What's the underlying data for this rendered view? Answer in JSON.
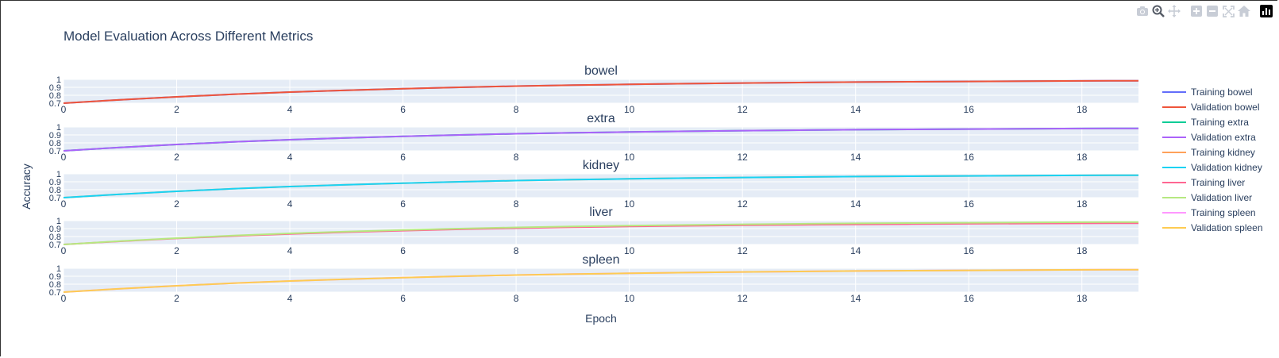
{
  "title": "Model Evaluation Across Different Metrics",
  "modebar": [
    "camera-icon",
    "zoom-icon",
    "pan-icon",
    "zoom-in-icon",
    "zoom-out-icon",
    "autoscale-icon",
    "reset-axes-icon",
    "plotly-logo-icon"
  ],
  "chart_data": {
    "type": "line",
    "layout": "stacked-subplots",
    "xlabel": "Epoch",
    "ylabel": "Accuracy",
    "xlim": [
      0,
      19
    ],
    "ylim": [
      0.7,
      1
    ],
    "x_ticks": [
      0,
      2,
      4,
      6,
      8,
      10,
      12,
      14,
      16,
      18
    ],
    "y_ticks": [
      "0.7",
      "0.8",
      "0.9",
      "1"
    ],
    "x": [
      0,
      1,
      2,
      3,
      4,
      5,
      6,
      7,
      8,
      9,
      10,
      11,
      12,
      13,
      14,
      15,
      16,
      17,
      18,
      19
    ],
    "grid": true,
    "legend_position": "right",
    "subplots": [
      {
        "title": "bowel",
        "series": [
          {
            "name": "Training bowel",
            "color": "#636efa",
            "values": [
              0.7,
              0.743,
              0.78,
              0.812,
              0.84,
              0.863,
              0.883,
              0.9,
              0.915,
              0.927,
              0.937,
              0.946,
              0.954,
              0.96,
              0.966,
              0.97,
              0.974,
              0.978,
              0.981,
              0.983
            ]
          },
          {
            "name": "Validation bowel",
            "color": "#EF553B",
            "values": [
              0.7,
              0.743,
              0.78,
              0.812,
              0.84,
              0.863,
              0.883,
              0.9,
              0.915,
              0.927,
              0.937,
              0.946,
              0.954,
              0.96,
              0.966,
              0.97,
              0.974,
              0.978,
              0.981,
              0.983
            ]
          }
        ]
      },
      {
        "title": "extra",
        "series": [
          {
            "name": "Training extra",
            "color": "#00cc96",
            "values": [
              0.7,
              0.743,
              0.78,
              0.812,
              0.84,
              0.863,
              0.883,
              0.9,
              0.915,
              0.927,
              0.937,
              0.946,
              0.954,
              0.96,
              0.966,
              0.97,
              0.974,
              0.978,
              0.981,
              0.983
            ]
          },
          {
            "name": "Validation extra",
            "color": "#ab63fa",
            "values": [
              0.7,
              0.743,
              0.78,
              0.812,
              0.84,
              0.863,
              0.883,
              0.9,
              0.915,
              0.927,
              0.937,
              0.946,
              0.954,
              0.96,
              0.966,
              0.97,
              0.974,
              0.978,
              0.981,
              0.983
            ]
          }
        ]
      },
      {
        "title": "kidney",
        "series": [
          {
            "name": "Training kidney",
            "color": "#FFA15A",
            "values": [
              0.7,
              0.743,
              0.78,
              0.812,
              0.84,
              0.863,
              0.883,
              0.9,
              0.915,
              0.927,
              0.937,
              0.946,
              0.954,
              0.96,
              0.966,
              0.97,
              0.974,
              0.978,
              0.981,
              0.983
            ]
          },
          {
            "name": "Validation kidney",
            "color": "#19d3f3",
            "values": [
              0.7,
              0.743,
              0.78,
              0.812,
              0.84,
              0.863,
              0.883,
              0.9,
              0.915,
              0.927,
              0.937,
              0.946,
              0.954,
              0.96,
              0.966,
              0.97,
              0.974,
              0.978,
              0.981,
              0.983
            ]
          }
        ]
      },
      {
        "title": "liver",
        "series": [
          {
            "name": "Training liver",
            "color": "#FF6692",
            "values": [
              0.7,
              0.74,
              0.776,
              0.806,
              0.832,
              0.855,
              0.874,
              0.891,
              0.905,
              0.917,
              0.927,
              0.935,
              0.942,
              0.948,
              0.953,
              0.957,
              0.961,
              0.964,
              0.966,
              0.968
            ]
          },
          {
            "name": "Validation liver",
            "color": "#B6E880",
            "values": [
              0.7,
              0.743,
              0.78,
              0.812,
              0.84,
              0.863,
              0.883,
              0.9,
              0.915,
              0.927,
              0.937,
              0.946,
              0.954,
              0.96,
              0.966,
              0.97,
              0.974,
              0.978,
              0.981,
              0.983
            ]
          }
        ]
      },
      {
        "title": "spleen",
        "series": [
          {
            "name": "Training spleen",
            "color": "#FF97FF",
            "values": [
              0.7,
              0.743,
              0.78,
              0.812,
              0.84,
              0.863,
              0.883,
              0.9,
              0.915,
              0.927,
              0.937,
              0.946,
              0.954,
              0.96,
              0.966,
              0.97,
              0.974,
              0.978,
              0.981,
              0.983
            ]
          },
          {
            "name": "Validation spleen",
            "color": "#FECB52",
            "values": [
              0.7,
              0.743,
              0.78,
              0.812,
              0.84,
              0.863,
              0.883,
              0.9,
              0.915,
              0.927,
              0.937,
              0.946,
              0.954,
              0.96,
              0.966,
              0.97,
              0.974,
              0.978,
              0.981,
              0.983
            ]
          }
        ]
      }
    ]
  }
}
